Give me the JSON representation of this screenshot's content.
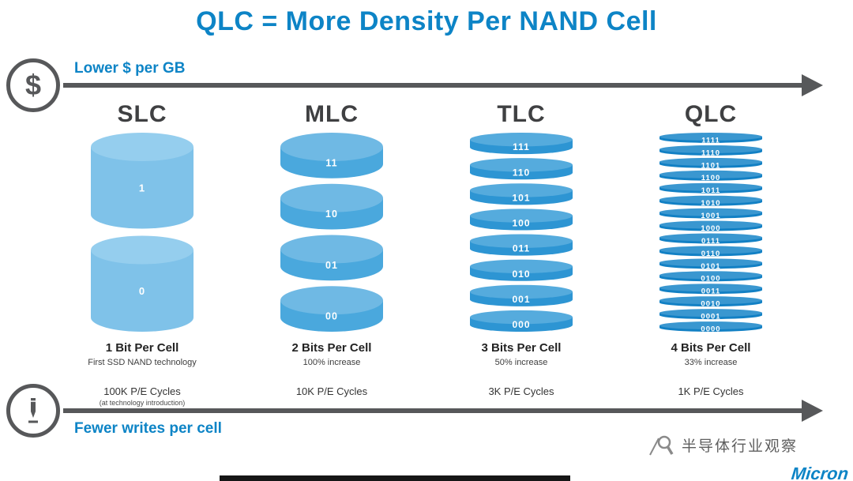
{
  "title": "QLC = More Density Per NAND Cell",
  "top_axis": {
    "symbol": "$",
    "label": "Lower $ per GB"
  },
  "bottom_axis": {
    "label": "Fewer writes per cell"
  },
  "colors": {
    "accent_blue": "#0d84c6",
    "arrow_gray": "#57585a",
    "heading_gray": "#3f4042"
  },
  "columns": [
    {
      "name": "SLC",
      "bits": "1 Bit Per Cell",
      "note": "First SSD NAND technology",
      "pe": "100K P/E Cycles",
      "pe_note": "(at technology introduction)",
      "body_color": "#7fc2e9",
      "top_color": "#95ceee",
      "segments": [
        "1",
        "0"
      ]
    },
    {
      "name": "MLC",
      "bits": "2 Bits Per Cell",
      "note": "100% increase",
      "pe": "10K P/E Cycles",
      "pe_note": "",
      "body_color": "#4aa8dd",
      "top_color": "#6fb9e4",
      "segments": [
        "11",
        "10",
        "01",
        "00"
      ]
    },
    {
      "name": "TLC",
      "bits": "3 Bits Per Cell",
      "note": "50% increase",
      "pe": "3K P/E Cycles",
      "pe_note": "",
      "body_color": "#2d95d3",
      "top_color": "#55abdd",
      "segments": [
        "111",
        "110",
        "101",
        "100",
        "011",
        "010",
        "001",
        "000"
      ]
    },
    {
      "name": "QLC",
      "bits": "4 Bits Per Cell",
      "note": "33% increase",
      "pe": "1K P/E Cycles",
      "pe_note": "",
      "body_color": "#1280c4",
      "top_color": "#3a97d0",
      "segments": [
        "1111",
        "1110",
        "1101",
        "1100",
        "1011",
        "1010",
        "1001",
        "1000",
        "0111",
        "0110",
        "0101",
        "0100",
        "0011",
        "0010",
        "0001",
        "0000"
      ]
    }
  ],
  "watermark": {
    "text": "半导体行业观察"
  },
  "brand": {
    "text": "Micron"
  }
}
